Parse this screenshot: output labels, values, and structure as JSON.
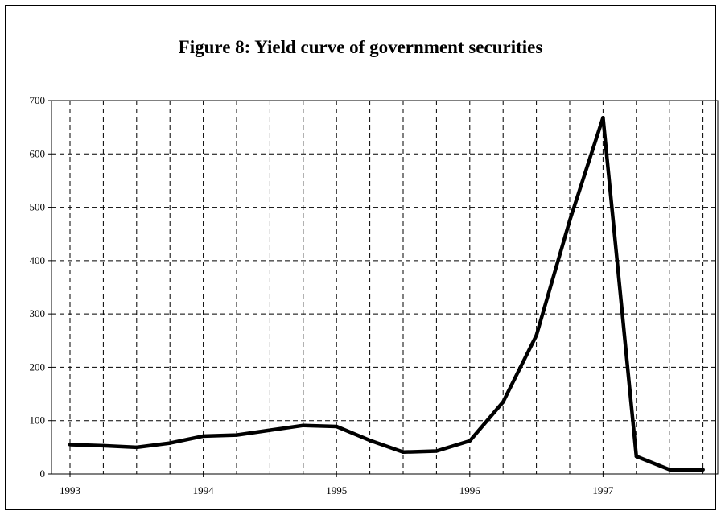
{
  "chart_data": {
    "type": "line",
    "title": "Figure 8: Yield curve of government securities",
    "xlabel": "",
    "ylabel": "",
    "ylim": [
      0,
      700
    ],
    "yticks": [
      0,
      100,
      200,
      300,
      400,
      500,
      600,
      700
    ],
    "xticks": [
      "1993",
      "1994",
      "1995",
      "1996",
      "1997"
    ],
    "grid": true,
    "legend": "none",
    "series": [
      {
        "color": "#000000",
        "x": [
          0,
          0.25,
          0.5,
          0.75,
          1,
          1.25,
          1.5,
          1.75,
          2,
          2.25,
          2.5,
          2.75,
          3,
          3.25,
          3.5,
          3.75,
          4,
          4.25,
          4.5,
          4.75
        ],
        "values": [
          55,
          53,
          50,
          58,
          71,
          73,
          82,
          91,
          89,
          63,
          41,
          43,
          62,
          135,
          260,
          475,
          668,
          33,
          8,
          8
        ]
      }
    ]
  }
}
